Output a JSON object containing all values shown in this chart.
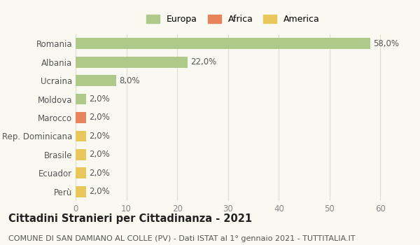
{
  "categories": [
    "Perù",
    "Ecuador",
    "Brasile",
    "Rep. Dominicana",
    "Marocco",
    "Moldova",
    "Ucraina",
    "Albania",
    "Romania"
  ],
  "values": [
    2.0,
    2.0,
    2.0,
    2.0,
    2.0,
    2.0,
    8.0,
    22.0,
    58.0
  ],
  "colors": [
    "#e8c85a",
    "#e8c85a",
    "#e8c85a",
    "#e8c85a",
    "#e8845a",
    "#aec98a",
    "#aec98a",
    "#aec98a",
    "#aec98a"
  ],
  "bar_labels": [
    "2,0%",
    "2,0%",
    "2,0%",
    "2,0%",
    "2,0%",
    "2,0%",
    "8,0%",
    "22,0%",
    "58,0%"
  ],
  "legend": [
    {
      "label": "Europa",
      "color": "#aec98a"
    },
    {
      "label": "Africa",
      "color": "#e8845a"
    },
    {
      "label": "America",
      "color": "#e8c85a"
    }
  ],
  "xlim": [
    0,
    62
  ],
  "xticks": [
    0,
    10,
    20,
    30,
    40,
    50,
    60
  ],
  "title": "Cittadini Stranieri per Cittadinanza - 2021",
  "subtitle": "COMUNE DI SAN DAMIANO AL COLLE (PV) - Dati ISTAT al 1° gennaio 2021 - TUTTITALIA.IT",
  "background_color": "#f9f9f2",
  "grid_color": "#ddddcc",
  "title_fontsize": 10.5,
  "subtitle_fontsize": 8,
  "label_fontsize": 8.5,
  "legend_fontsize": 9
}
